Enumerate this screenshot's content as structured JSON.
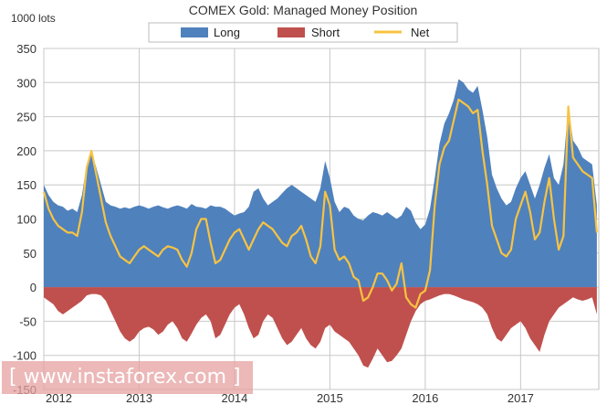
{
  "chart_data": {
    "type": "area",
    "title": "COMEX Gold: Managed Money Position",
    "ylabel": "1000 lots",
    "ylim": [
      -150,
      350
    ],
    "yticks": [
      350,
      300,
      250,
      200,
      150,
      100,
      50,
      0,
      -50,
      -100,
      -150
    ],
    "xlim": [
      2012.0,
      2017.82
    ],
    "xtick_labels": [
      "2012",
      "2013",
      "2014",
      "2015",
      "2016",
      "2017"
    ],
    "xticks": [
      2012,
      2013,
      2014,
      2015,
      2016,
      2017
    ],
    "grid": true,
    "legend": "top",
    "x": [
      2012.0,
      2012.05,
      2012.1,
      2012.15,
      2012.2,
      2012.25,
      2012.3,
      2012.35,
      2012.4,
      2012.45,
      2012.5,
      2012.55,
      2012.6,
      2012.65,
      2012.7,
      2012.75,
      2012.8,
      2012.85,
      2012.9,
      2012.95,
      2013.0,
      2013.05,
      2013.1,
      2013.15,
      2013.2,
      2013.25,
      2013.3,
      2013.35,
      2013.4,
      2013.45,
      2013.5,
      2013.55,
      2013.6,
      2013.65,
      2013.7,
      2013.75,
      2013.8,
      2013.85,
      2013.9,
      2013.95,
      2014.0,
      2014.05,
      2014.1,
      2014.15,
      2014.2,
      2014.25,
      2014.3,
      2014.35,
      2014.4,
      2014.45,
      2014.5,
      2014.55,
      2014.6,
      2014.65,
      2014.7,
      2014.75,
      2014.8,
      2014.85,
      2014.9,
      2014.95,
      2015.0,
      2015.05,
      2015.1,
      2015.15,
      2015.2,
      2015.25,
      2015.3,
      2015.35,
      2015.4,
      2015.45,
      2015.5,
      2015.55,
      2015.6,
      2015.65,
      2015.7,
      2015.75,
      2015.8,
      2015.85,
      2015.9,
      2015.95,
      2016.0,
      2016.05,
      2016.1,
      2016.15,
      2016.2,
      2016.25,
      2016.3,
      2016.35,
      2016.4,
      2016.45,
      2016.5,
      2016.55,
      2016.6,
      2016.65,
      2016.7,
      2016.75,
      2016.8,
      2016.85,
      2016.9,
      2016.95,
      2017.0,
      2017.05,
      2017.1,
      2017.15,
      2017.2,
      2017.25,
      2017.3,
      2017.35,
      2017.4,
      2017.45,
      2017.5,
      2017.55,
      2017.6,
      2017.65,
      2017.7,
      2017.75,
      2017.8
    ],
    "series": [
      {
        "name": "Long",
        "color": "#4f81bd",
        "values": [
          150,
          135,
          125,
          120,
          118,
          112,
          115,
          110,
          135,
          180,
          200,
          175,
          150,
          125,
          120,
          118,
          115,
          117,
          115,
          118,
          120,
          118,
          115,
          118,
          120,
          117,
          115,
          118,
          120,
          118,
          115,
          122,
          118,
          117,
          115,
          120,
          118,
          118,
          115,
          110,
          105,
          108,
          110,
          118,
          140,
          145,
          130,
          120,
          125,
          130,
          138,
          145,
          150,
          145,
          140,
          135,
          130,
          125,
          145,
          185,
          160,
          125,
          110,
          118,
          115,
          105,
          100,
          98,
          105,
          110,
          108,
          105,
          110,
          105,
          100,
          105,
          118,
          112,
          95,
          85,
          92,
          115,
          160,
          210,
          240,
          255,
          275,
          305,
          300,
          290,
          285,
          295,
          260,
          220,
          165,
          145,
          130,
          120,
          125,
          145,
          160,
          170,
          150,
          130,
          150,
          175,
          195,
          160,
          150,
          180,
          265,
          215,
          205,
          190,
          185,
          180,
          120
        ]
      },
      {
        "name": "Short",
        "color": "#c0504d",
        "values": [
          -15,
          -20,
          -25,
          -35,
          -40,
          -35,
          -30,
          -25,
          -20,
          -12,
          -10,
          -10,
          -12,
          -20,
          -35,
          -50,
          -65,
          -75,
          -80,
          -75,
          -65,
          -60,
          -58,
          -62,
          -70,
          -65,
          -55,
          -50,
          -60,
          -75,
          -80,
          -68,
          -55,
          -45,
          -40,
          -50,
          -75,
          -70,
          -55,
          -40,
          -30,
          -25,
          -40,
          -60,
          -75,
          -70,
          -50,
          -40,
          -45,
          -60,
          -75,
          -85,
          -80,
          -70,
          -60,
          -75,
          -85,
          -90,
          -80,
          -60,
          -55,
          -65,
          -70,
          -75,
          -80,
          -90,
          -100,
          -115,
          -118,
          -105,
          -90,
          -100,
          -110,
          -108,
          -100,
          -90,
          -70,
          -50,
          -35,
          -25,
          -20,
          -18,
          -15,
          -12,
          -10,
          -10,
          -12,
          -15,
          -18,
          -20,
          -22,
          -25,
          -30,
          -40,
          -60,
          -75,
          -80,
          -70,
          -60,
          -55,
          -50,
          -60,
          -75,
          -85,
          -95,
          -70,
          -50,
          -40,
          -30,
          -25,
          -20,
          -15,
          -18,
          -20,
          -18,
          -15,
          -40
        ]
      },
      {
        "name": "Net",
        "color": "#f7c342",
        "values": [
          140,
          115,
          100,
          90,
          85,
          80,
          80,
          75,
          110,
          175,
          200,
          165,
          130,
          95,
          75,
          60,
          45,
          40,
          35,
          45,
          55,
          60,
          55,
          50,
          45,
          55,
          60,
          58,
          55,
          40,
          30,
          50,
          85,
          100,
          100,
          65,
          35,
          40,
          55,
          70,
          80,
          85,
          70,
          55,
          70,
          85,
          95,
          90,
          85,
          75,
          65,
          60,
          75,
          80,
          90,
          70,
          45,
          35,
          60,
          140,
          120,
          55,
          40,
          45,
          35,
          15,
          10,
          -20,
          -15,
          0,
          20,
          20,
          10,
          -5,
          5,
          35,
          -15,
          -25,
          -30,
          -10,
          -5,
          25,
          120,
          180,
          205,
          215,
          245,
          275,
          270,
          265,
          255,
          260,
          200,
          150,
          90,
          70,
          50,
          45,
          55,
          100,
          120,
          140,
          110,
          70,
          80,
          125,
          160,
          100,
          55,
          75,
          265,
          190,
          180,
          170,
          165,
          160,
          80
        ]
      }
    ]
  },
  "watermark": "[ www.instaforex.com ]"
}
